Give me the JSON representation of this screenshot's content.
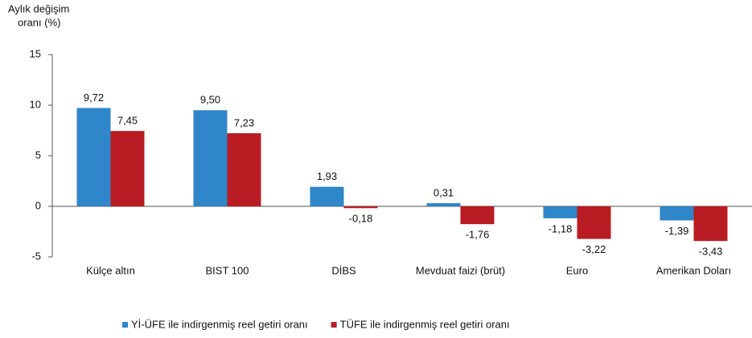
{
  "chart_data": {
    "type": "bar",
    "ylabel": [
      "Aylık değişim",
      "oranı (%)"
    ],
    "categories": [
      "Külçe altın",
      "BIST 100",
      "DİBS",
      "Mevduat faizi (brüt)",
      "Euro",
      "Amerikan Doları"
    ],
    "series": [
      {
        "name": "Yİ-ÜFE ile indirgenmiş reel getiri oranı",
        "color": "#2f86c8",
        "values": [
          9.72,
          9.5,
          1.93,
          0.31,
          -1.18,
          -1.39
        ],
        "value_labels": [
          "9,72",
          "9,50",
          "1,93",
          "0,31",
          "-1,18",
          "-1,39"
        ]
      },
      {
        "name": "TÜFE ile indirgenmiş reel getiri oranı",
        "color": "#b91c22",
        "values": [
          7.45,
          7.23,
          -0.18,
          -1.76,
          -3.22,
          -3.43
        ],
        "value_labels": [
          "7,45",
          "7,23",
          "-0,18",
          "-1,76",
          "-3,22",
          "-3,43"
        ]
      }
    ],
    "ylim": [
      -5,
      15
    ],
    "yticks": [
      15,
      10,
      5,
      0,
      -5
    ],
    "grid": false,
    "legend": "bottom"
  }
}
